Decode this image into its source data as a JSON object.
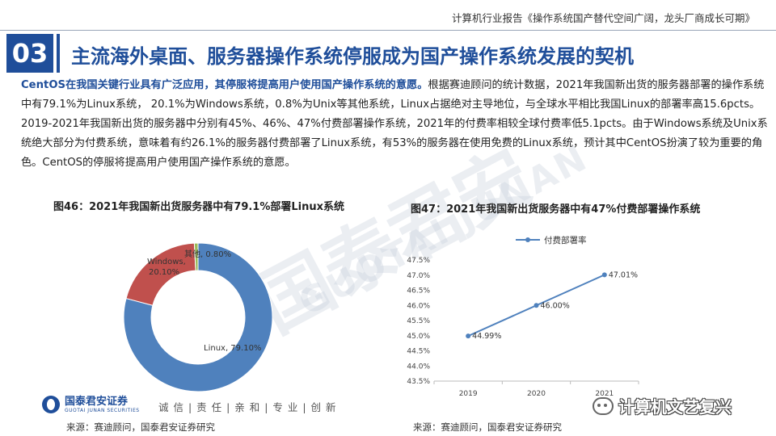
{
  "header": {
    "report_title": "计算机行业报告《操作系统国产替代空间广阔，龙头厂商成长可期》"
  },
  "section": {
    "number": "03",
    "title": "主流海外桌面、服务器操作系统停服成为国产操作系统发展的契机"
  },
  "body": {
    "lead": "CentOS在我国关键行业具有广泛应用，其停服将提高用户使用国产操作系统的意愿。",
    "text": "根据赛迪顾问的统计数据，2021年我国新出货的服务器部署的操作系统中有79.1%为Linux系统， 20.1%为Windows系统，0.8%为Unix等其他系统，Linux占据绝对主导地位，与全球水平相比我国Linux的部署率高15.6pcts。2019-2021年我国新出货的服务器中分别有45%、46%、47%付费部署操作系统，2021年的付费率相较全球付费率低5.1pcts。由于Windows系统及Unix系统绝大部分为付费系统，意味着有约26.1%的服务器付费部署了Linux系统，有53%的服务器在使用免费的Linux系统，预计其中CentOS扮演了较为重要的角色。CentOS的停服将提高用户使用国产操作系统的意愿。"
  },
  "watermark": {
    "cn": "国泰君安",
    "en": "GUOTAI JUNAN"
  },
  "figures": {
    "fig46_title": "图46：2021年我国新出货服务器中有79.1%部署Linux系统",
    "fig47_title": "图47：2021年我国新出货服务器中有47%付费部署操作系统",
    "source_left": "来源：赛迪顾问，国泰君安证券研究",
    "source_right": "来源：赛迪顾问，国泰君安证券研究"
  },
  "chart_data": [
    {
      "type": "pie",
      "donut": true,
      "title": "图46：2021年我国新出货服务器中有79.1%部署Linux系统",
      "labels": [
        "Linux",
        "Windows",
        "其他"
      ],
      "values": [
        79.1,
        20.1,
        0.8
      ],
      "data_labels": [
        "Linux, 79.10%",
        "Windows, 20.10%",
        "其他, 0.80%"
      ],
      "colors": [
        "#4f81bd",
        "#c0504d",
        "#9bbb59"
      ]
    },
    {
      "type": "line",
      "title": "图47：2021年我国新出货服务器中有47%付费部署操作系统",
      "legend": "top",
      "categories": [
        "2019",
        "2020",
        "2021"
      ],
      "series": [
        {
          "name": "付费部署率",
          "values": [
            44.99,
            46.0,
            47.01
          ],
          "data_labels": [
            "44.99%",
            "46.00%",
            "47.01%"
          ],
          "color": "#4f81bd"
        }
      ],
      "ylim": [
        43.5,
        47.5
      ],
      "yticks": [
        "43.5%",
        "44.0%",
        "44.5%",
        "45.0%",
        "45.5%",
        "46.0%",
        "46.5%",
        "47.0%",
        "47.5%"
      ],
      "grid": false
    }
  ],
  "footer": {
    "logo_cn": "国泰君安证券",
    "logo_en": "GUOTAI JUNAN SECURITIES",
    "slogan": "诚 信 | 责 任 | 亲 和 | 专 业 | 创 新",
    "wechat": "计算机文艺复兴"
  }
}
